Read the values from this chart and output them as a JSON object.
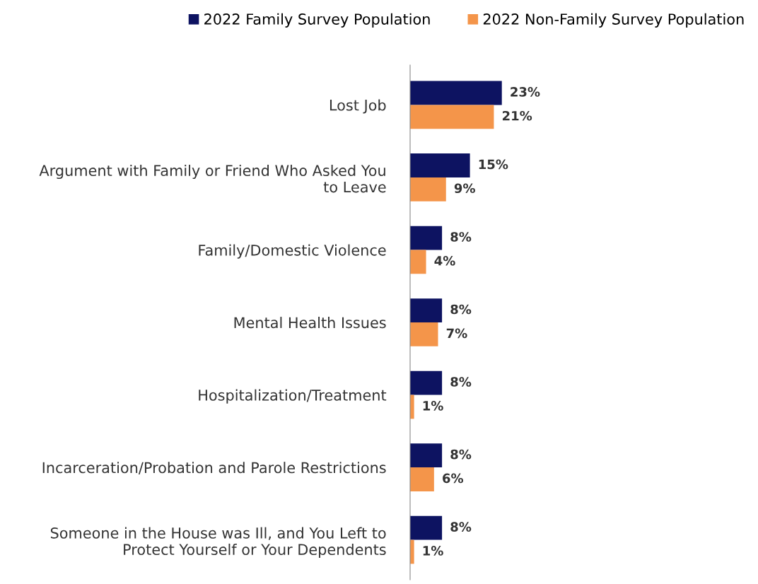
{
  "chart_data": {
    "type": "bar",
    "orientation": "horizontal",
    "categories": [
      "Lost Job",
      "Argument with Family or Friend Who Asked You\nto Leave",
      "Family/Domestic Violence",
      "Mental Health Issues",
      "Hospitalization/Treatment",
      "Incarceration/Probation and Parole Restrictions",
      "Someone in the House was Ill, and You Left to\nProtect Yourself or Your Dependents"
    ],
    "series": [
      {
        "name": "2022 Family Survey Population",
        "color": "#0d1361",
        "values": [
          23,
          15,
          8,
          8,
          8,
          8,
          8
        ],
        "value_labels": [
          "23%",
          "15%",
          "8%",
          "8%",
          "8%",
          "8%",
          "8%"
        ]
      },
      {
        "name": "2022 Non-Family Survey Population",
        "color": "#f4954a",
        "values": [
          21,
          9,
          4,
          7,
          1,
          6,
          1
        ],
        "value_labels": [
          "21%",
          "9%",
          "4%",
          "7%",
          "1%",
          "6%",
          "1%"
        ]
      }
    ],
    "legend": "top",
    "grid": false
  }
}
